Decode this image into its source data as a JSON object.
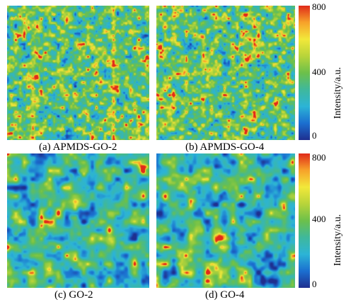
{
  "panels": [
    {
      "caption": "(a) APMDS-GO-2",
      "texture": "fine",
      "seed": 11
    },
    {
      "caption": "(b) APMDS-GO-4",
      "texture": "fine",
      "seed": 29
    },
    {
      "caption": "(c) GO-2",
      "texture": "coarse",
      "seed": 47
    },
    {
      "caption": "(d) GO-4",
      "texture": "coarse",
      "seed": 83
    }
  ],
  "colorbars": [
    {
      "label": "Intensity/a.u.",
      "ticks": [
        "800",
        "400",
        "0"
      ]
    },
    {
      "label": "Intensity/a.u.",
      "ticks": [
        "800",
        "400",
        "0"
      ]
    }
  ],
  "colorscale": [
    "#1f2f8f",
    "#1b6fd0",
    "#2cb4d6",
    "#3fb89c",
    "#6cc04a",
    "#b8d43a",
    "#f2e83a",
    "#f7a22a",
    "#e02a1a"
  ]
}
